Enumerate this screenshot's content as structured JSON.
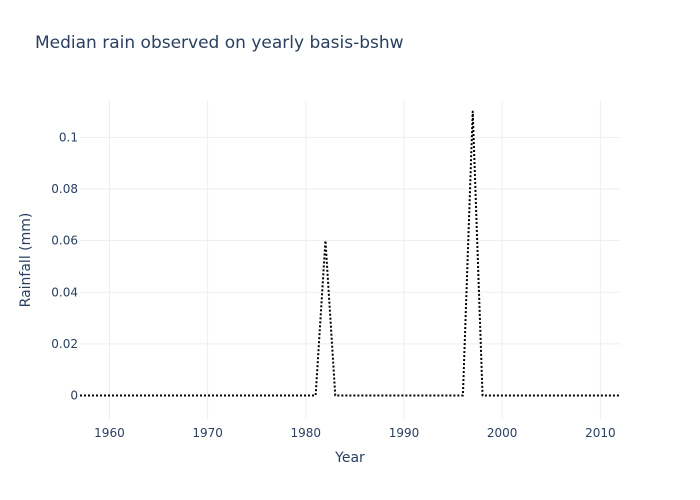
{
  "chart_data": {
    "type": "line",
    "title": "Median rain observed on yearly basis-bshw",
    "xlabel": "Year",
    "ylabel": "Rainfall (mm)",
    "xlim": [
      1957,
      2012
    ],
    "ylim": [
      -0.0095,
      0.1145
    ],
    "x_ticks": [
      1960,
      1970,
      1980,
      1990,
      2000,
      2010
    ],
    "y_ticks": [
      0,
      0.02,
      0.04,
      0.06,
      0.08,
      0.1
    ],
    "y_tick_labels": [
      "0",
      "0.02",
      "0.04",
      "0.06",
      "0.08",
      "0.1"
    ],
    "grid": true,
    "line_style": "dotted",
    "line_color": "#000000",
    "grid_color": "#eeeeee",
    "series": [
      {
        "x": [
          1957,
          1958,
          1959,
          1960,
          1961,
          1962,
          1963,
          1964,
          1965,
          1966,
          1967,
          1968,
          1969,
          1970,
          1971,
          1972,
          1973,
          1974,
          1975,
          1976,
          1977,
          1978,
          1979,
          1980,
          1981,
          1982,
          1983,
          1984,
          1985,
          1986,
          1987,
          1988,
          1989,
          1990,
          1991,
          1992,
          1993,
          1994,
          1995,
          1996,
          1997,
          1998,
          1999,
          2000,
          2001,
          2002,
          2003,
          2004,
          2005,
          2006,
          2007,
          2008,
          2009,
          2010,
          2011,
          2012
        ],
        "y": [
          0,
          0,
          0,
          0,
          0,
          0,
          0,
          0,
          0,
          0,
          0,
          0,
          0,
          0,
          0,
          0,
          0,
          0,
          0,
          0,
          0,
          0,
          0,
          0,
          0,
          0.06,
          0,
          0,
          0,
          0,
          0,
          0,
          0,
          0,
          0,
          0,
          0,
          0,
          0,
          0,
          0.11,
          0,
          0,
          0,
          0,
          0,
          0,
          0,
          0,
          0,
          0,
          0,
          0,
          0,
          0,
          0
        ]
      }
    ]
  }
}
